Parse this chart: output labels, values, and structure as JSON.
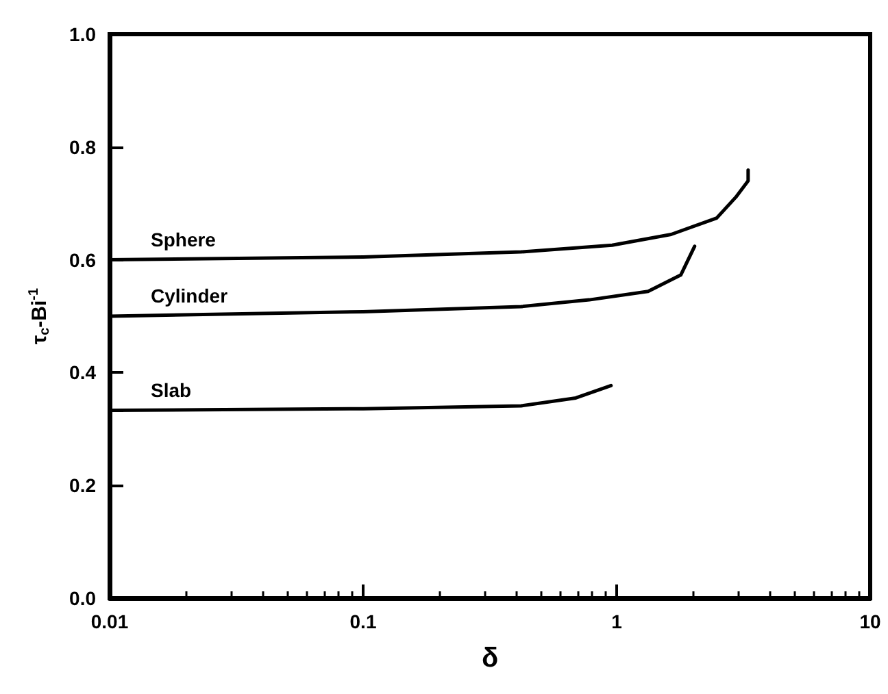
{
  "chart_data": {
    "type": "line",
    "xlabel": "δ",
    "ylabel": "τ$_{c}$-Bi$^{-1}$",
    "log": "x",
    "grid": false,
    "legend": false,
    "marker": "none",
    "line_style": "solid",
    "xlim": [
      0.01,
      10
    ],
    "xticks": [
      0.01,
      0.1,
      1,
      10
    ],
    "ylim": [
      0,
      1
    ],
    "yticks": [
      {
        "value": 0,
        "label": "0.0"
      },
      0.2,
      {
        "value": 0.333,
        "label": null
      },
      0.4,
      {
        "value": 0.5,
        "label": null
      },
      0.6,
      0.8,
      {
        "value": 1,
        "label": "1.0"
      }
    ],
    "series": [
      {
        "name": "Sphere",
        "color": "#000000",
        "x": [
          0.01,
          0.1,
          0.42,
          0.96,
          1.64,
          2.48,
          2.95,
          3.3,
          3.3
        ],
        "values": [
          0.6,
          0.605,
          0.614,
          0.626,
          0.645,
          0.674,
          0.711,
          0.74,
          0.759
        ]
      },
      {
        "name": "Cylinder",
        "color": "#000000",
        "x": [
          0.01,
          0.1,
          0.42,
          0.78,
          1.33,
          1.79,
          2.03
        ],
        "values": [
          0.5,
          0.508,
          0.517,
          0.529,
          0.544,
          0.573,
          0.624
        ]
      },
      {
        "name": "Slab",
        "color": "#000000",
        "x": [
          0.01,
          0.1,
          0.42,
          0.69,
          0.95
        ],
        "values": [
          0.333,
          0.336,
          0.341,
          0.355,
          0.377
        ]
      }
    ]
  }
}
